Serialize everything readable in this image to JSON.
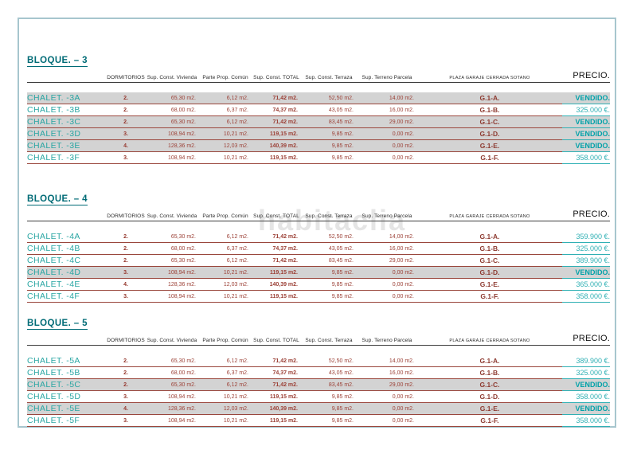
{
  "page": {
    "watermark": "habitaclia"
  },
  "columns": [
    "DORMITORIOS",
    "Sup. Const. Vivienda",
    "Parte Prop. Común",
    "Sup. Const. TOTAL",
    "Sup. Const. Terraza",
    "Sup. Terreno Parcela",
    "PLAZA GARAJE CERRADA SOTANO",
    "PRECIO."
  ],
  "colors": {
    "teal_title": "#006b76",
    "teal_name": "#2aa6a3",
    "teal_price": "#2fb0b4",
    "maroon_value": "#9c4137",
    "row_line": "#9a463c",
    "sold_row_bg": "#d3d3d3",
    "page_border": "#a7c6ce"
  },
  "blocks": [
    {
      "title": "BLOQUE. – 3",
      "rows": [
        {
          "name": "CHALET. -3A",
          "dorm": "2.",
          "vivienda": "65,30 m2.",
          "comun": "6,12 m2.",
          "total": "71,42 m2.",
          "terraza": "52,50 m2.",
          "parcela": "14,00 m2.",
          "garaje": "G.1-A.",
          "precio": "VENDIDO.",
          "sold": true
        },
        {
          "name": "CHALET. -3B",
          "dorm": "2.",
          "vivienda": "68,00 m2.",
          "comun": "6,37 m2.",
          "total": "74,37 m2.",
          "terraza": "43,05 m2.",
          "parcela": "16,00 m2.",
          "garaje": "G.1-B.",
          "precio": "325.000 €.",
          "sold": false
        },
        {
          "name": "CHALET. -3C",
          "dorm": "2.",
          "vivienda": "65,30 m2.",
          "comun": "6,12 m2.",
          "total": "71,42 m2.",
          "terraza": "83,45 m2.",
          "parcela": "29,00 m2.",
          "garaje": "G.1-C.",
          "precio": "VENDIDO.",
          "sold": true
        },
        {
          "name": "CHALET. -3D",
          "dorm": "3.",
          "vivienda": "108,94 m2.",
          "comun": "10,21 m2.",
          "total": "119,15 m2.",
          "terraza": "9,85 m2.",
          "parcela": "0,00 m2.",
          "garaje": "G.1-D.",
          "precio": "VENDIDO.",
          "sold": true
        },
        {
          "name": "CHALET. -3E",
          "dorm": "4.",
          "vivienda": "128,36 m2.",
          "comun": "12,03 m2.",
          "total": "140,39 m2.",
          "terraza": "9,85 m2.",
          "parcela": "0,00 m2.",
          "garaje": "G.1-E.",
          "precio": "VENDIDO.",
          "sold": true
        },
        {
          "name": "CHALET. -3F",
          "dorm": "3.",
          "vivienda": "108,94 m2.",
          "comun": "10,21 m2.",
          "total": "119,15 m2.",
          "terraza": "9,85 m2.",
          "parcela": "0,00 m2.",
          "garaje": "G.1-F.",
          "precio": "358.000 €.",
          "sold": false
        }
      ]
    },
    {
      "title": "BLOQUE. – 4",
      "rows": [
        {
          "name": "CHALET. -4A",
          "dorm": "2.",
          "vivienda": "65,30 m2.",
          "comun": "6,12 m2.",
          "total": "71,42 m2.",
          "terraza": "52,50 m2.",
          "parcela": "14,00 m2.",
          "garaje": "G.1-A.",
          "precio": "359.900 €.",
          "sold": false
        },
        {
          "name": "CHALET. -4B",
          "dorm": "2.",
          "vivienda": "68,00 m2.",
          "comun": "6,37 m2.",
          "total": "74,37 m2.",
          "terraza": "43,05 m2.",
          "parcela": "16,00 m2.",
          "garaje": "G.1-B.",
          "precio": "325.000 €.",
          "sold": false
        },
        {
          "name": "CHALET. -4C",
          "dorm": "2.",
          "vivienda": "65,30 m2.",
          "comun": "6,12 m2.",
          "total": "71,42 m2.",
          "terraza": "83,45 m2.",
          "parcela": "29,00 m2.",
          "garaje": "G.1-C.",
          "precio": "389.900 €.",
          "sold": false
        },
        {
          "name": "CHALET. -4D",
          "dorm": "3.",
          "vivienda": "108,94 m2.",
          "comun": "10,21 m2.",
          "total": "119,15 m2.",
          "terraza": "9,85 m2.",
          "parcela": "0,00 m2.",
          "garaje": "G.1-D.",
          "precio": "VENDIDO.",
          "sold": true
        },
        {
          "name": "CHALET. -4E",
          "dorm": "4.",
          "vivienda": "128,36 m2.",
          "comun": "12,03 m2.",
          "total": "140,39 m2.",
          "terraza": "9,85 m2.",
          "parcela": "0,00 m2.",
          "garaje": "G.1-E.",
          "precio": "365.000 €.",
          "sold": false
        },
        {
          "name": "CHALET. -4F",
          "dorm": "3.",
          "vivienda": "108,94 m2.",
          "comun": "10,21 m2.",
          "total": "119,15 m2.",
          "terraza": "9,85 m2.",
          "parcela": "0,00 m2.",
          "garaje": "G.1-F.",
          "precio": "358.000 €.",
          "sold": false
        }
      ]
    },
    {
      "title": "BLOQUE. – 5",
      "rows": [
        {
          "name": "CHALET. -5A",
          "dorm": "2.",
          "vivienda": "65,30 m2.",
          "comun": "6,12 m2.",
          "total": "71,42 m2.",
          "terraza": "52,50 m2.",
          "parcela": "14,00 m2.",
          "garaje": "G.1-A.",
          "precio": "389.900 €.",
          "sold": false
        },
        {
          "name": "CHALET. -5B",
          "dorm": "2.",
          "vivienda": "68,00 m2.",
          "comun": "6,37 m2.",
          "total": "74,37 m2.",
          "terraza": "43,05 m2.",
          "parcela": "16,00 m2.",
          "garaje": "G.1-B.",
          "precio": "325.000 €.",
          "sold": false
        },
        {
          "name": "CHALET. -5C",
          "dorm": "2.",
          "vivienda": "65,30 m2.",
          "comun": "6,12 m2.",
          "total": "71,42 m2.",
          "terraza": "83,45 m2.",
          "parcela": "29,00 m2.",
          "garaje": "G.1-C.",
          "precio": "VENDIDO.",
          "sold": true
        },
        {
          "name": "CHALET. -5D",
          "dorm": "3.",
          "vivienda": "108,94 m2.",
          "comun": "10,21 m2.",
          "total": "119,15 m2.",
          "terraza": "9,85 m2.",
          "parcela": "0,00 m2.",
          "garaje": "G.1-D.",
          "precio": "358.000 €.",
          "sold": false
        },
        {
          "name": "CHALET. -5E",
          "dorm": "4.",
          "vivienda": "128,36 m2.",
          "comun": "12,03 m2.",
          "total": "140,39 m2.",
          "terraza": "9,85 m2.",
          "parcela": "0,00 m2.",
          "garaje": "G.1-E.",
          "precio": "VENDIDO.",
          "sold": true
        },
        {
          "name": "CHALET. -5F",
          "dorm": "3.",
          "vivienda": "108,94 m2.",
          "comun": "10,21 m2.",
          "total": "119,15 m2.",
          "terraza": "9,85 m2.",
          "parcela": "0,00 m2.",
          "garaje": "G.1-F.",
          "precio": "358.000 €.",
          "sold": false
        }
      ]
    }
  ]
}
